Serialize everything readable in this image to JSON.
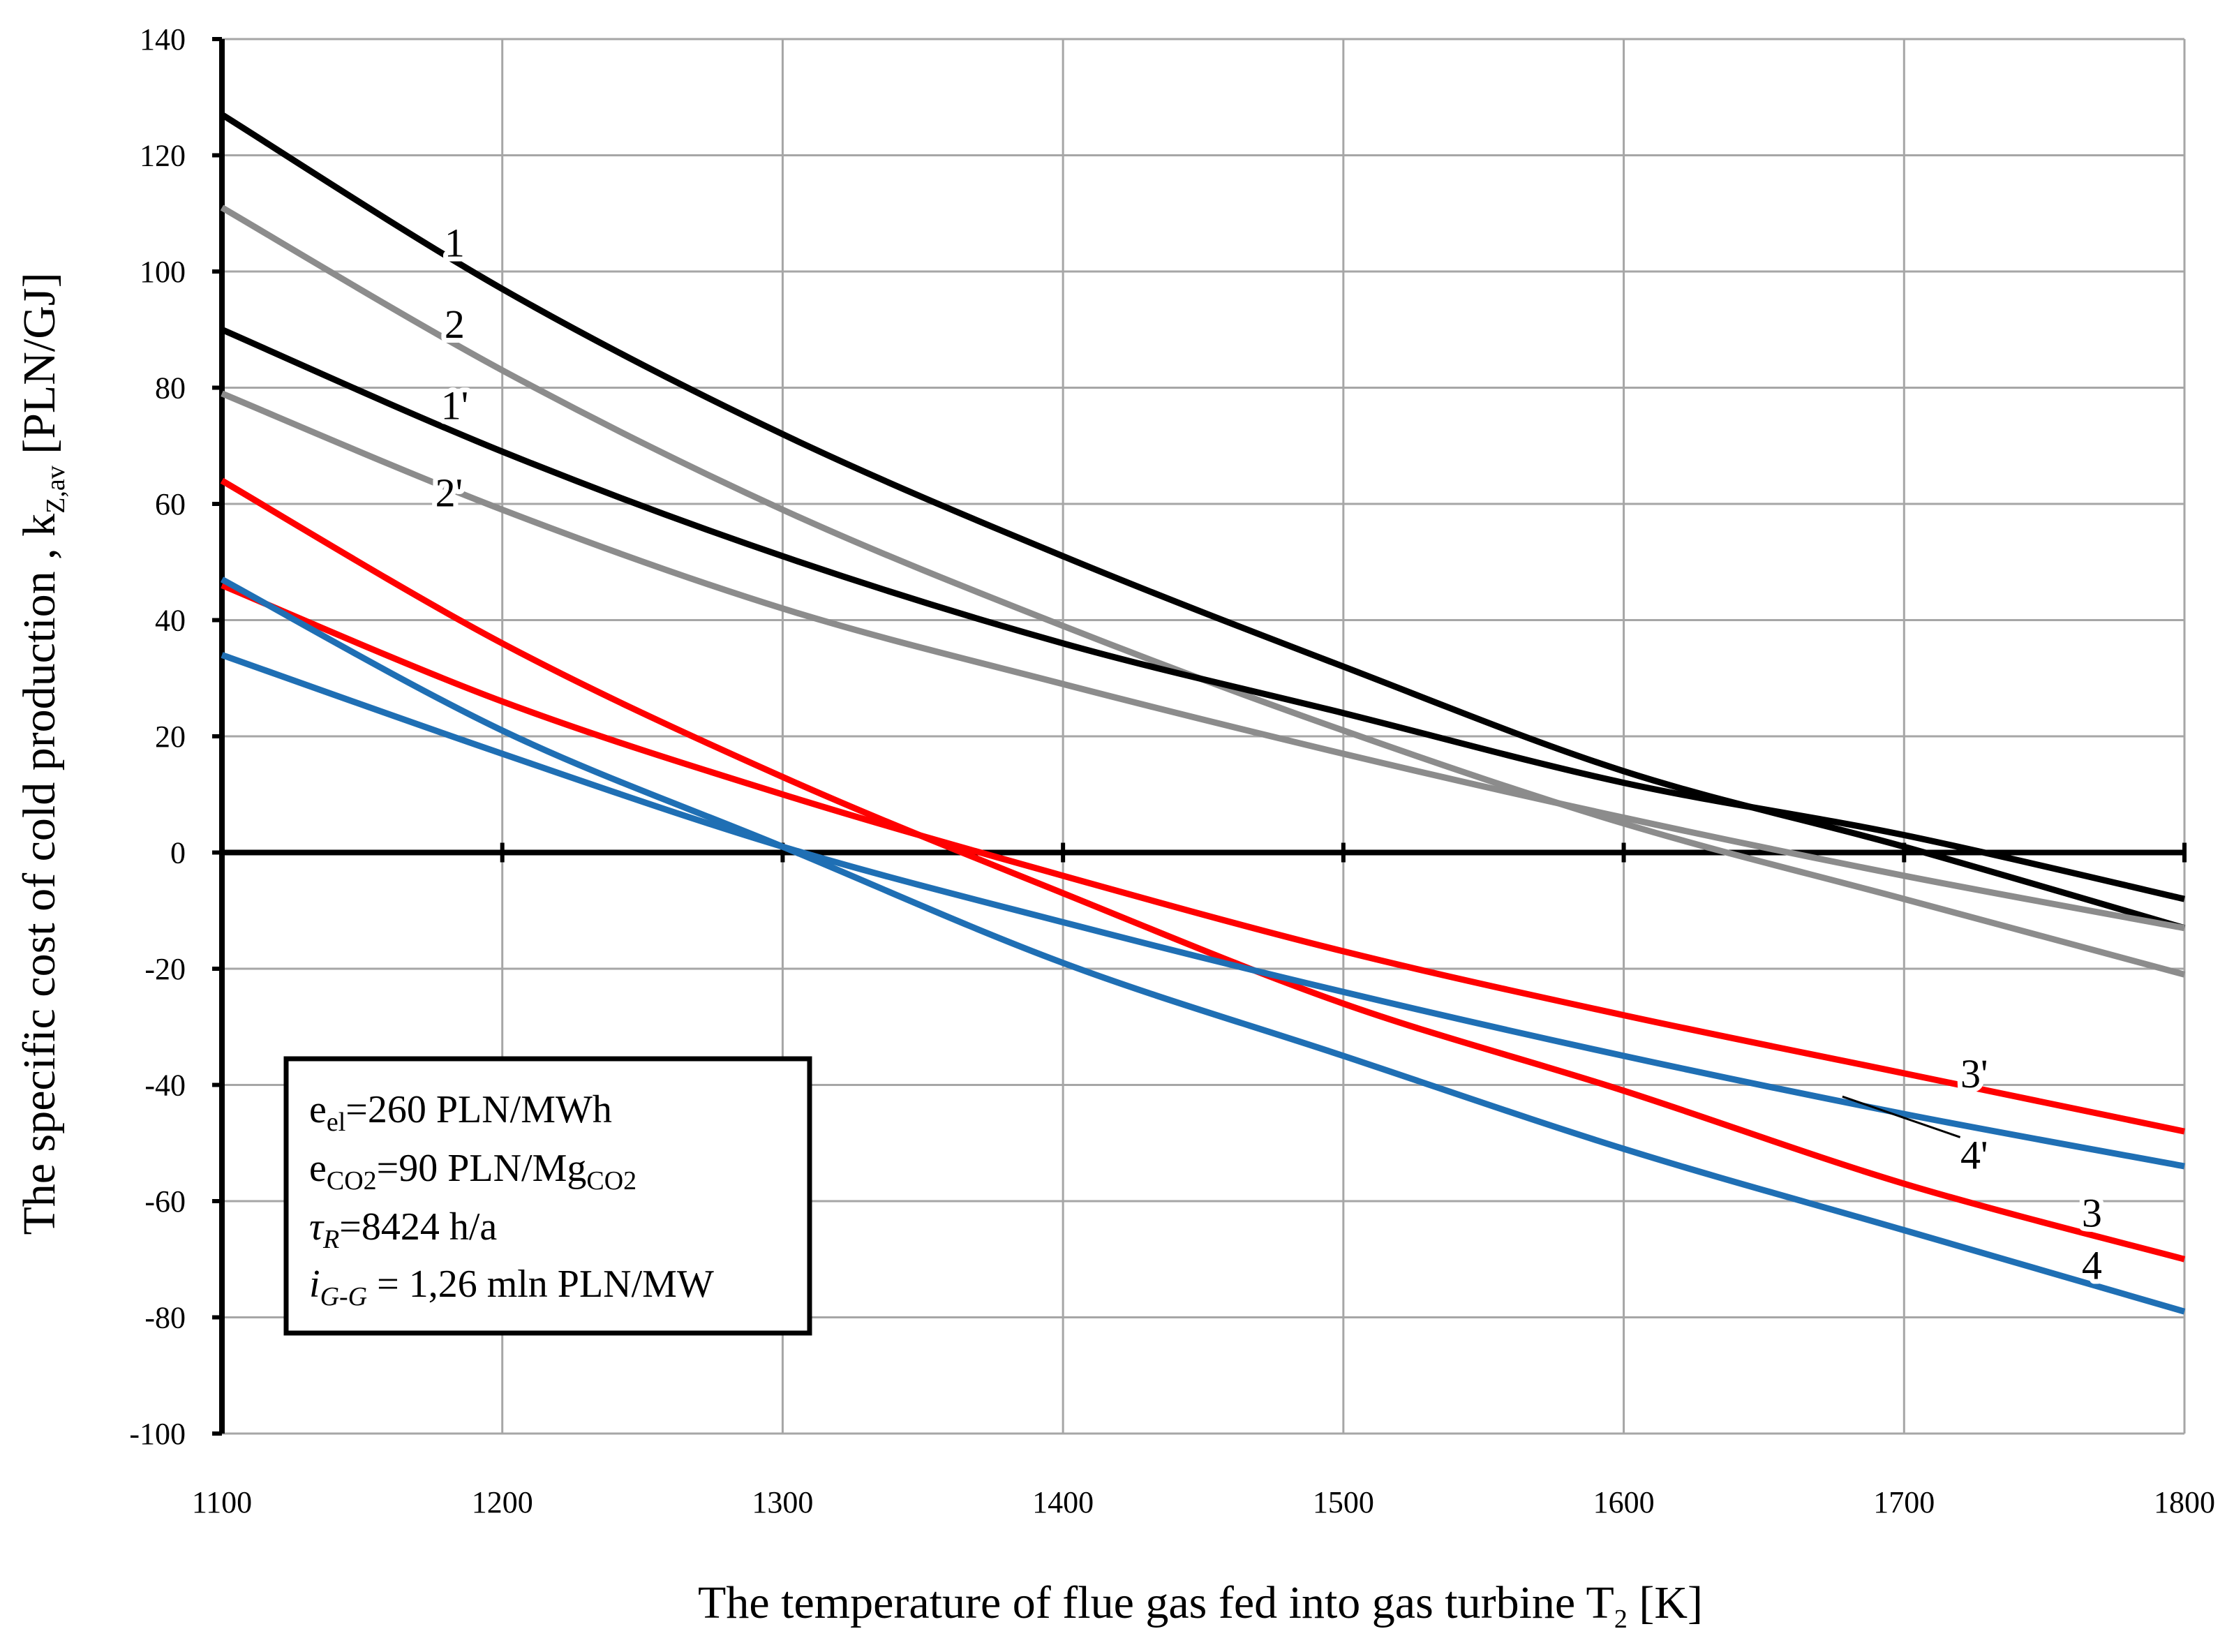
{
  "chart_data": {
    "type": "line",
    "title": "",
    "xlabel": {
      "main": "The temperature of flue gas fed into gas turbine T",
      "subscript": "2",
      "unit": " [K]"
    },
    "ylabel": {
      "main": "The specific cost of cold production , k",
      "subscript": "Z,av",
      "unit": " [PLN/GJ]"
    },
    "xlim": [
      1100,
      1800
    ],
    "ylim": [
      -100,
      140
    ],
    "xticks": [
      1100,
      1200,
      1300,
      1400,
      1500,
      1600,
      1700,
      1800
    ],
    "yticks": [
      -100,
      -80,
      -60,
      -40,
      -20,
      0,
      20,
      40,
      60,
      80,
      100,
      120,
      140
    ],
    "grid": true,
    "colors": {
      "black": "#000000",
      "gray": "#8c8c8c",
      "red": "#ff0000",
      "blue": "#1f6fb4",
      "grid": "#a6a6a6"
    },
    "x": [
      1100,
      1200,
      1300,
      1400,
      1500,
      1600,
      1700,
      1800
    ],
    "series": [
      {
        "name": "1",
        "color": "black",
        "values": [
          127,
          97,
          72,
          51,
          32,
          14,
          1,
          -13
        ]
      },
      {
        "name": "2",
        "color": "gray",
        "values": [
          111,
          83,
          59,
          39,
          21,
          5,
          -8,
          -21
        ]
      },
      {
        "name": "1'",
        "color": "black",
        "values": [
          90,
          69,
          51,
          36,
          24,
          12,
          3,
          -8
        ]
      },
      {
        "name": "2'",
        "color": "gray",
        "values": [
          79,
          59,
          42,
          29,
          17,
          6,
          -4,
          -13
        ]
      },
      {
        "name": "3",
        "color": "red",
        "values": [
          64,
          36,
          13,
          -7,
          -26,
          -41,
          -57,
          -70
        ]
      },
      {
        "name": "3'",
        "color": "red",
        "values": [
          46,
          26,
          10,
          -4,
          -17,
          -28,
          -38,
          -48
        ]
      },
      {
        "name": "4",
        "color": "blue",
        "values": [
          47,
          21,
          1,
          -19,
          -35,
          -51,
          -65,
          -79
        ]
      },
      {
        "name": "4'",
        "color": "blue",
        "values": [
          34,
          17,
          1,
          -12,
          -24,
          -35,
          -45,
          -54
        ]
      }
    ],
    "curve_labels": [
      {
        "text": "1",
        "x": 1183,
        "y": 105
      },
      {
        "text": "2",
        "x": 1183,
        "y": 91
      },
      {
        "text": "1'",
        "x": 1183,
        "y": 77
      },
      {
        "text": "2'",
        "x": 1181,
        "y": 62
      },
      {
        "text": "3'",
        "x": 1725,
        "y": -38
      },
      {
        "text": "4'",
        "x": 1725,
        "y": -52
      },
      {
        "text": "3",
        "x": 1767,
        "y": -62
      },
      {
        "text": "4",
        "x": 1767,
        "y": -71
      }
    ],
    "leader_line": {
      "from": [
        1720,
        -49
      ],
      "to": [
        1678,
        -42
      ]
    },
    "legend": {
      "placement": "bottom-left",
      "lines": [
        {
          "pre": "e",
          "sub": "el",
          "post": "=260 PLN/MWh",
          "italic": false
        },
        {
          "pre": "e",
          "sub": "CO2",
          "post": "=90 PLN/Mg",
          "sub2": "CO2",
          "italic": false
        },
        {
          "pre": "τ",
          "sub": "R",
          "post": "=8424 h/a",
          "italic": true
        },
        {
          "pre": "i",
          "sub": "G-G",
          "post": " = 1,26 mln PLN/MW",
          "italic": true
        }
      ]
    }
  }
}
